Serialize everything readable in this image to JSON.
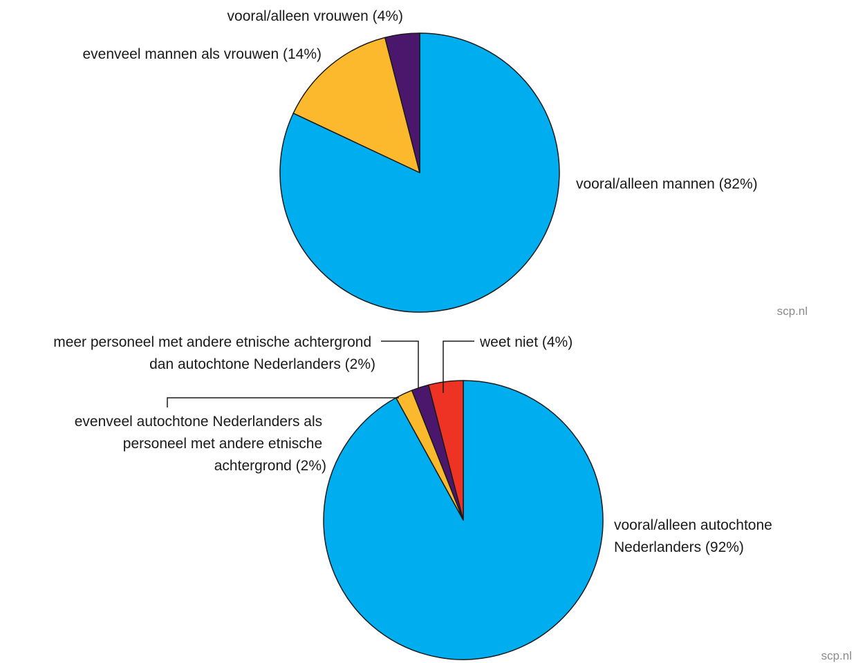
{
  "chart_data": [
    {
      "type": "pie",
      "start": "12 o'clock, clockwise",
      "slices": [
        {
          "label": "vooral/alleen mannen (82%)",
          "value": 82,
          "color": "#00adef"
        },
        {
          "label": "evenveel mannen als vrouwen (14%)",
          "value": 14,
          "color": "#fdb92e"
        },
        {
          "label": "vooral/alleen vrouwen (4%)",
          "value": 4,
          "color": "#4b176d"
        }
      ],
      "source": "scp.nl"
    },
    {
      "type": "pie",
      "start": "12 o'clock, clockwise",
      "slices": [
        {
          "label_lines": [
            "vooral/alleen autochtone",
            "Nederlanders (92%)"
          ],
          "value": 92,
          "color": "#00adef"
        },
        {
          "label_lines": [
            "evenveel autochtone Nederlanders als",
            "personeel met andere etnische",
            "achtergrond (2%)"
          ],
          "value": 2,
          "color": "#fdb92e"
        },
        {
          "label_lines": [
            "meer personeel met andere etnische achtergrond",
            "dan autochtone Nederlanders (2%)"
          ],
          "value": 2,
          "color": "#4b176d"
        },
        {
          "label_lines": [
            "weet niet (4%)"
          ],
          "value": 4,
          "color": "#ee3325"
        }
      ],
      "source": "scp.nl"
    }
  ]
}
